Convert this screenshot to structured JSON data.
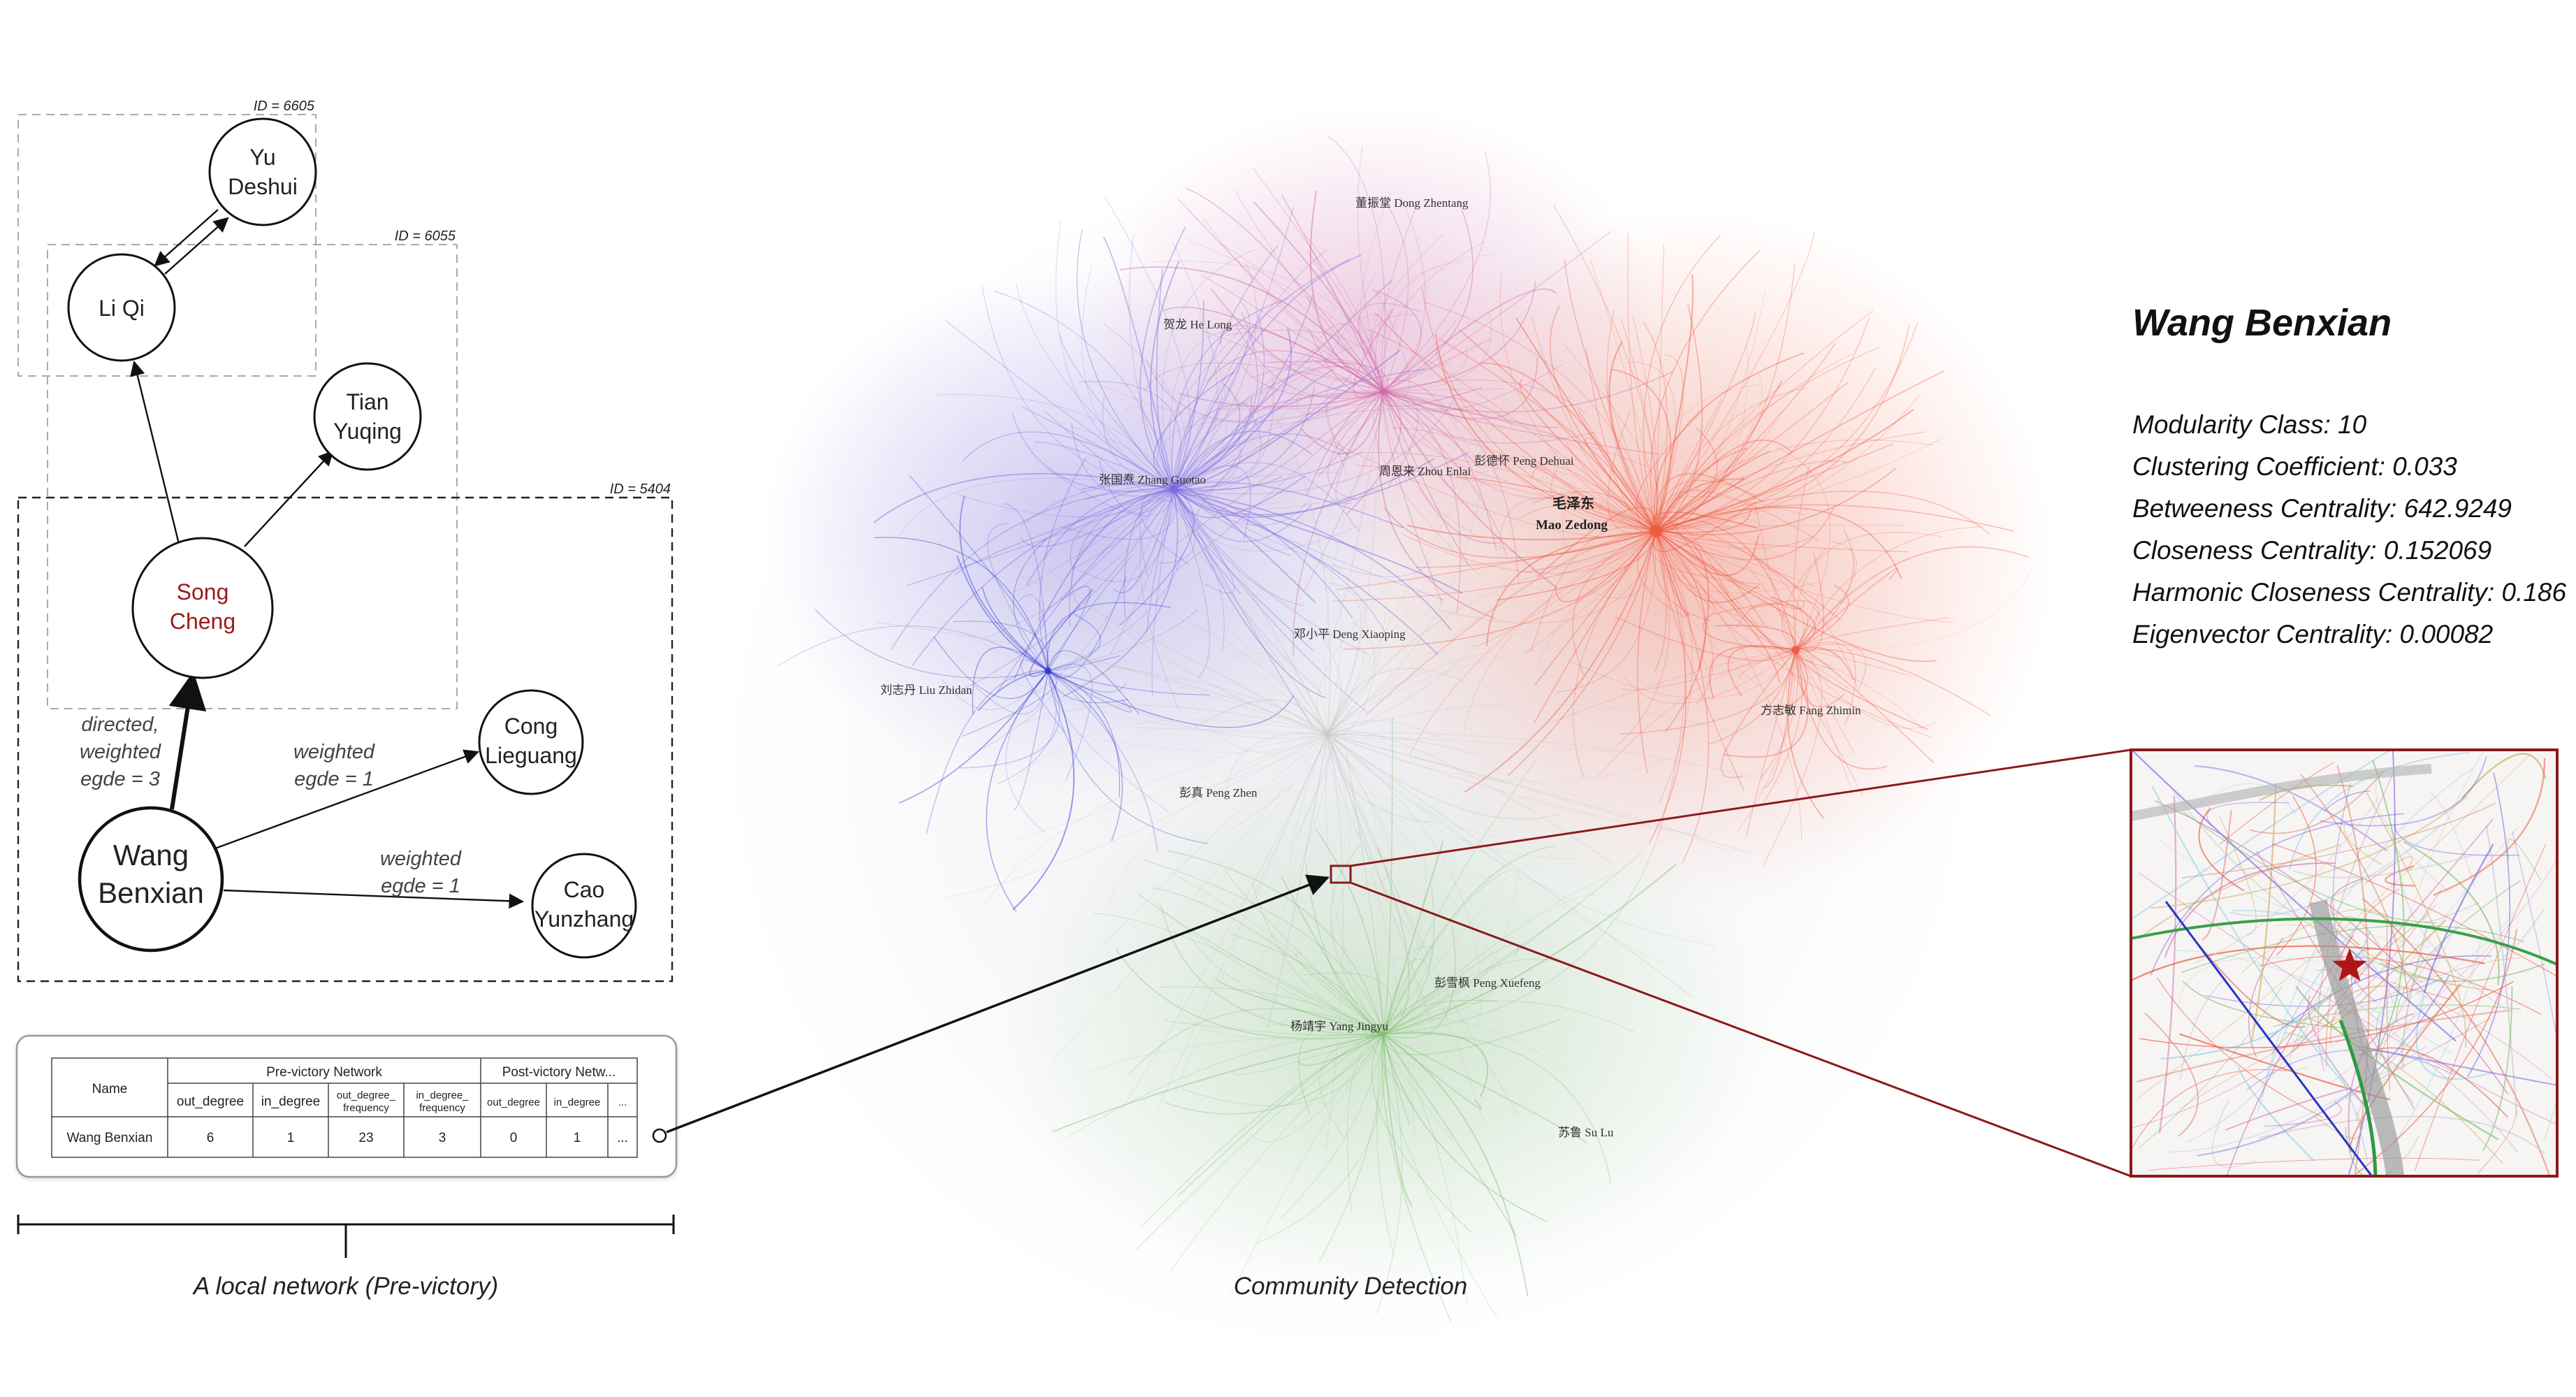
{
  "local_network": {
    "ids": {
      "group1": "ID = 6605",
      "group2": "ID = 6055",
      "group3": "ID = 5404"
    },
    "nodes": {
      "yu_deshui": [
        "Yu",
        "Deshui"
      ],
      "li_qi": [
        "Li Qi"
      ],
      "tian_yuqing": [
        "Tian",
        "Yuqing"
      ],
      "song_cheng": [
        "Song",
        "Cheng"
      ],
      "cong_lieguang": [
        "Cong",
        "Lieguang"
      ],
      "wang_benxian": [
        "Wang",
        "Benxian"
      ],
      "cao_yunzhang": [
        "Cao",
        "Yunzhang"
      ]
    },
    "edge_labels": {
      "song": [
        "directed,",
        "weighted",
        "egde = 3"
      ],
      "cong": [
        "weighted",
        "egde = 1"
      ],
      "cao": [
        "weighted",
        "egde = 1"
      ]
    },
    "caption": "A local network (Pre-victory)"
  },
  "table": {
    "name_header": "Name",
    "group_pre": "Pre-victory Network",
    "group_post": "Post-victory Netw...",
    "cols": [
      "out_degree",
      "in_degree",
      "out_degree_",
      "frequency",
      "in_degree_",
      "frequency",
      "out_degree",
      "in_degree",
      "..."
    ],
    "row": {
      "name": "Wang Benxian",
      "values": [
        "6",
        "1",
        "23",
        "3",
        "0",
        "1",
        "..."
      ]
    }
  },
  "network": {
    "caption": "Community Detection",
    "labels": [
      "董振堂 Dong Zhentang",
      "贺龙 He Long",
      "张国焘 Zhang Guotao",
      "周恩来 Zhou Enlai",
      "彭德怀 Peng Dehuai",
      "毛泽东",
      "Mao Zedong",
      "邓小平 Deng Xiaoping",
      "刘志丹 Liu Zhidan",
      "方志敏 Fang Zhimin",
      "彭真 Peng Zhen",
      "彭雪枫 Peng Xuefeng",
      "杨靖宇 Yang Jingyu",
      "苏鲁 Su Lu"
    ],
    "colors": {
      "purple": "#7a6ae0",
      "red": "#ee5a3e",
      "pink": "#d06aa8",
      "green": "#7cc070",
      "blue": "#2d35d0",
      "grey": "#c8c8c8"
    }
  },
  "info": {
    "name": "Wang Benxian",
    "lines": [
      "Modularity Class: 10",
      "Clustering Coefficient: 0.033",
      "Betweeness Centrality: 642.9249",
      "Closeness Centrality: 0.152069",
      "Harmonic Closeness Centrality: 0.186",
      "Eigenvector Centrality: 0.00082"
    ]
  },
  "zoom": {
    "marker": "star-icon",
    "frame_color": "#8b1a1a"
  }
}
